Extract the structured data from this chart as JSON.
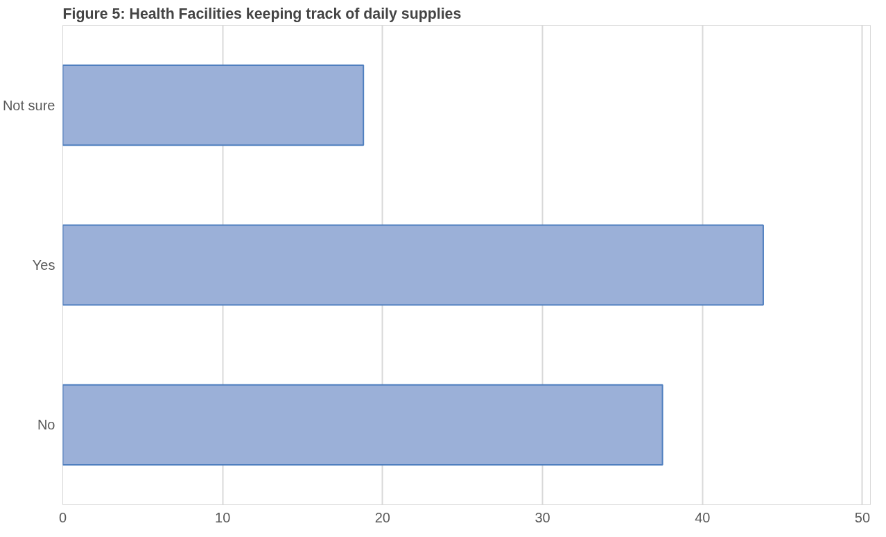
{
  "chart_data": {
    "type": "bar",
    "orientation": "horizontal",
    "title": "Figure 5: Health Facilities keeping track of daily supplies",
    "categories": [
      "Not sure",
      "Yes",
      "No"
    ],
    "values": [
      18.8,
      43.8,
      37.5
    ],
    "color": "#9bb0d8",
    "xlim": [
      0,
      50
    ],
    "xticks": [
      0,
      10,
      20,
      30,
      40,
      50
    ],
    "grid": "x"
  }
}
